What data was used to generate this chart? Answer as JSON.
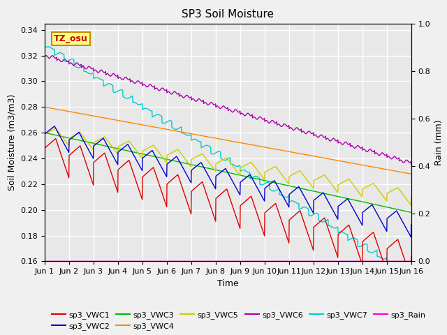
{
  "title": "SP3 Soil Moisture",
  "xlabel": "Time",
  "ylabel_left": "Soil Moisture (m3/m3)",
  "ylabel_right": "Rain (mm)",
  "xlim": [
    0,
    15
  ],
  "ylim_left": [
    0.16,
    0.345
  ],
  "ylim_right": [
    0.0,
    1.0
  ],
  "xtick_labels": [
    "Jun 1",
    "Jun 2",
    "Jun 3",
    "Jun 4",
    "Jun 5",
    "Jun 6",
    "Jun 7",
    "Jun 8",
    "Jun 9",
    "Jun 10",
    "Jun 11",
    "Jun 12",
    "Jun 13",
    "Jun 14",
    "Jun 15",
    "Jun 16"
  ],
  "xtick_positions": [
    0,
    1,
    2,
    3,
    4,
    5,
    6,
    7,
    8,
    9,
    10,
    11,
    12,
    13,
    14,
    15
  ],
  "ytick_left": [
    0.16,
    0.18,
    0.2,
    0.22,
    0.24,
    0.26,
    0.28,
    0.3,
    0.32,
    0.34
  ],
  "ytick_right": [
    0.0,
    0.2,
    0.4,
    0.6,
    0.8,
    1.0
  ],
  "series_colors": {
    "sp3_VWC1": "#dd0000",
    "sp3_VWC2": "#0000cc",
    "sp3_VWC3": "#00bb00",
    "sp3_VWC4": "#ff8800",
    "sp3_VWC5": "#cccc00",
    "sp3_VWC6": "#aa00aa",
    "sp3_VWC7": "#00cccc",
    "sp3_Rain": "#ff00cc"
  },
  "bg_color": "#e8e8e8",
  "grid_color": "#ffffff",
  "fig_bg": "#f0f0f0",
  "annotation_text": "TZ_osu",
  "annotation_bg": "#ffff88",
  "annotation_border": "#cc8800",
  "linewidth": 1.0
}
